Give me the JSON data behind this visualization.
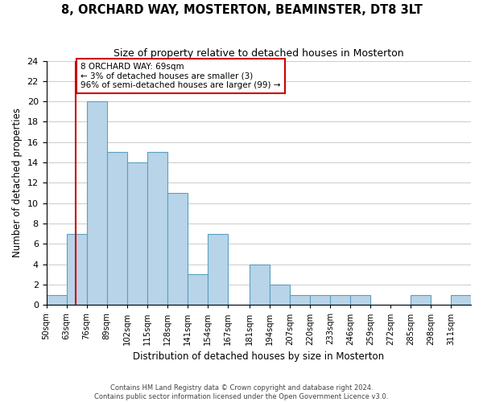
{
  "title": "8, ORCHARD WAY, MOSTERTON, BEAMINSTER, DT8 3LT",
  "subtitle": "Size of property relative to detached houses in Mosterton",
  "xlabel": "Distribution of detached houses by size in Mosterton",
  "ylabel": "Number of detached properties",
  "bin_edges": [
    50,
    63,
    76,
    89,
    102,
    115,
    128,
    141,
    154,
    167,
    181,
    194,
    207,
    220,
    233,
    246,
    259,
    272,
    285,
    298,
    311,
    324
  ],
  "counts": [
    1,
    7,
    20,
    15,
    14,
    15,
    11,
    3,
    7,
    0,
    4,
    2,
    1,
    1,
    1,
    1,
    0,
    0,
    1,
    0,
    1
  ],
  "bar_color": "#b8d4e8",
  "bar_edge_color": "#5a9fc0",
  "highlight_x": 69,
  "highlight_color": "#cc0000",
  "annotation_title": "8 ORCHARD WAY: 69sqm",
  "annotation_line1": "← 3% of detached houses are smaller (3)",
  "annotation_line2": "96% of semi-detached houses are larger (99) →",
  "annotation_box_color": "#ffffff",
  "annotation_box_edge": "#cc0000",
  "ylim": [
    0,
    24
  ],
  "yticks": [
    0,
    2,
    4,
    6,
    8,
    10,
    12,
    14,
    16,
    18,
    20,
    22,
    24
  ],
  "xtick_positions": [
    50,
    63,
    76,
    89,
    102,
    115,
    128,
    141,
    154,
    167,
    181,
    194,
    207,
    220,
    233,
    246,
    259,
    272,
    285,
    298,
    311
  ],
  "tick_labels": [
    "50sqm",
    "63sqm",
    "76sqm",
    "89sqm",
    "102sqm",
    "115sqm",
    "128sqm",
    "141sqm",
    "154sqm",
    "167sqm",
    "181sqm",
    "194sqm",
    "207sqm",
    "220sqm",
    "233sqm",
    "246sqm",
    "259sqm",
    "272sqm",
    "285sqm",
    "298sqm",
    "311sqm"
  ],
  "footer1": "Contains HM Land Registry data © Crown copyright and database right 2024.",
  "footer2": "Contains public sector information licensed under the Open Government Licence v3.0.",
  "grid_color": "#cccccc",
  "background_color": "#ffffff"
}
